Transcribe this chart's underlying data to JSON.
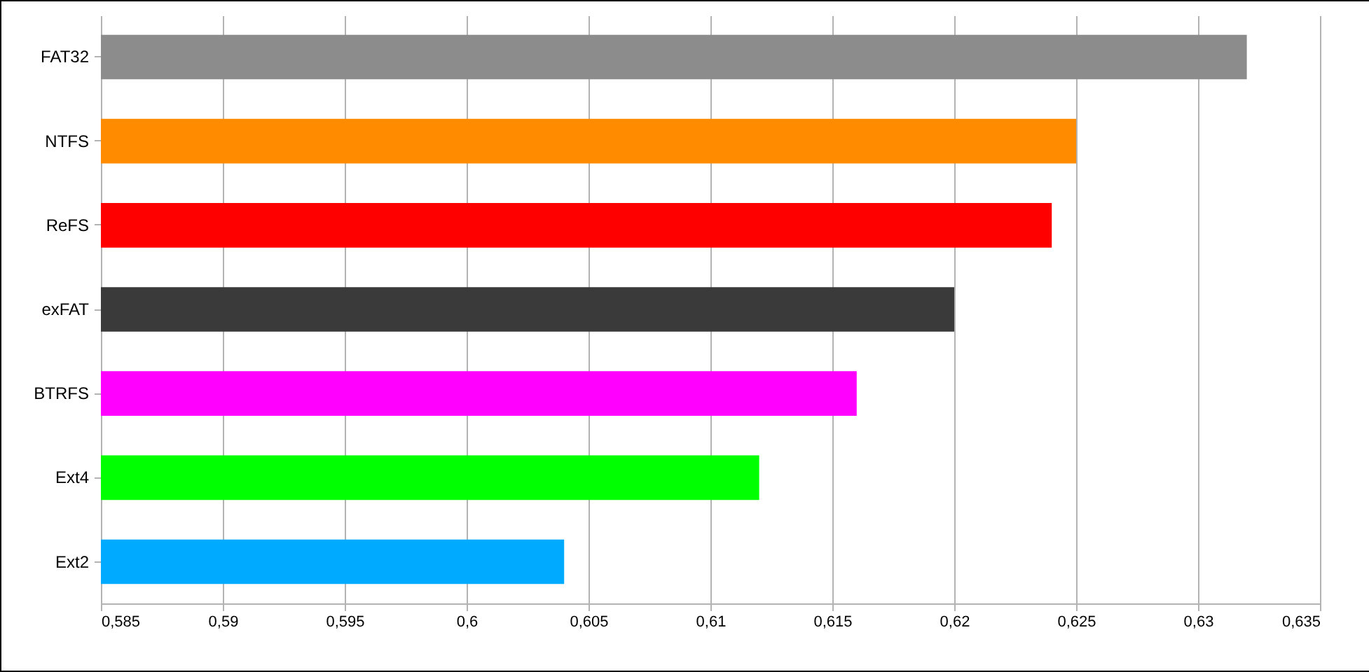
{
  "chart_data": {
    "type": "bar",
    "orientation": "horizontal",
    "categories": [
      "FAT32",
      "NTFS",
      "ReFS",
      "exFAT",
      "BTRFS",
      "Ext4",
      "Ext2"
    ],
    "values": [
      0.632,
      0.625,
      0.624,
      0.62,
      0.616,
      0.612,
      0.604
    ],
    "colors": [
      "#8c8c8c",
      "#ff8c00",
      "#ff0000",
      "#3a3a3a",
      "#ff00ff",
      "#00ff00",
      "#00aaff"
    ],
    "xlim": [
      0.585,
      0.635
    ],
    "xticks": [
      {
        "value": 0.585,
        "label": "0,585"
      },
      {
        "value": 0.59,
        "label": "0,59"
      },
      {
        "value": 0.595,
        "label": "0,595"
      },
      {
        "value": 0.6,
        "label": "0,6"
      },
      {
        "value": 0.605,
        "label": "0,605"
      },
      {
        "value": 0.61,
        "label": "0,61"
      },
      {
        "value": 0.615,
        "label": "0,615"
      },
      {
        "value": 0.62,
        "label": "0,62"
      },
      {
        "value": 0.625,
        "label": "0,625"
      },
      {
        "value": 0.63,
        "label": "0,63"
      },
      {
        "value": 0.635,
        "label": "0,635"
      }
    ],
    "grid": "x"
  }
}
